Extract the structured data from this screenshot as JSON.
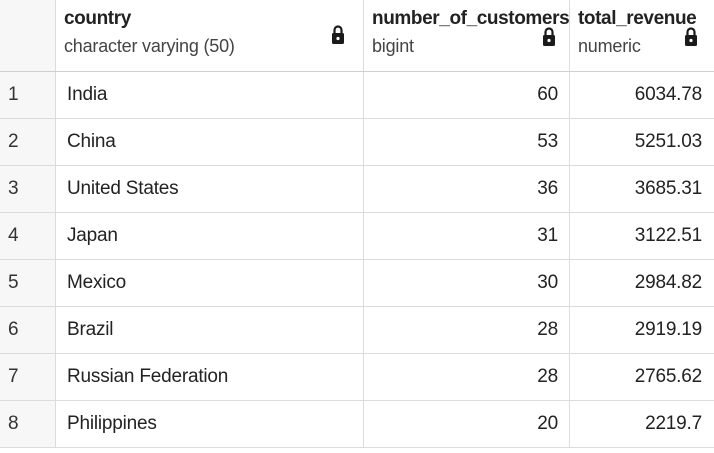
{
  "columns": [
    {
      "name": "country",
      "type": "character varying (50)"
    },
    {
      "name": "number_of_customers",
      "type": "bigint"
    },
    {
      "name": "total_revenue",
      "type": "numeric"
    }
  ],
  "icons": {
    "column_lock": "lock-icon"
  },
  "rows": [
    {
      "index": "1",
      "country": "India",
      "number_of_customers": "60",
      "total_revenue": "6034.78"
    },
    {
      "index": "2",
      "country": "China",
      "number_of_customers": "53",
      "total_revenue": "5251.03"
    },
    {
      "index": "3",
      "country": "United States",
      "number_of_customers": "36",
      "total_revenue": "3685.31"
    },
    {
      "index": "4",
      "country": "Japan",
      "number_of_customers": "31",
      "total_revenue": "3122.51"
    },
    {
      "index": "5",
      "country": "Mexico",
      "number_of_customers": "30",
      "total_revenue": "2984.82"
    },
    {
      "index": "6",
      "country": "Brazil",
      "number_of_customers": "28",
      "total_revenue": "2919.19"
    },
    {
      "index": "7",
      "country": "Russian Federation",
      "number_of_customers": "28",
      "total_revenue": "2765.62"
    },
    {
      "index": "8",
      "country": "Philippines",
      "number_of_customers": "20",
      "total_revenue": "2219.7"
    }
  ]
}
